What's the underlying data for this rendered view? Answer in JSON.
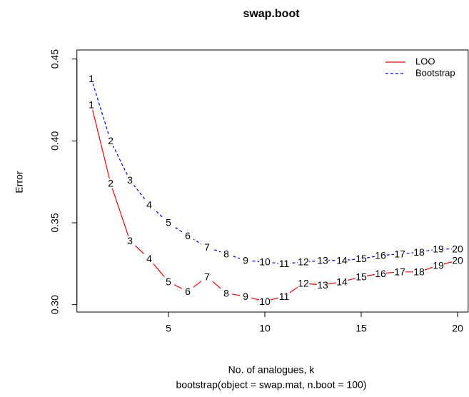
{
  "chart_data": {
    "type": "line",
    "title": "swap.boot",
    "subtitle": "bootstrap(object = swap.mat, n.boot = 100)",
    "x_label": "No. of analogues, k",
    "y_label": "Error",
    "x": [
      1,
      2,
      3,
      4,
      5,
      6,
      7,
      8,
      9,
      10,
      11,
      12,
      13,
      14,
      15,
      16,
      17,
      18,
      19,
      20
    ],
    "series": [
      {
        "name": "LOO",
        "color": "#ff0000",
        "dash": "solid",
        "values": [
          0.422,
          0.374,
          0.339,
          0.328,
          0.314,
          0.308,
          0.317,
          0.307,
          0.305,
          0.302,
          0.305,
          0.313,
          0.312,
          0.314,
          0.317,
          0.319,
          0.32,
          0.32,
          0.324,
          0.327
        ]
      },
      {
        "name": "Bootstrap",
        "color": "#0000ff",
        "dash": "dashed",
        "values": [
          0.438,
          0.4,
          0.376,
          0.361,
          0.35,
          0.342,
          0.335,
          0.331,
          0.327,
          0.326,
          0.325,
          0.326,
          0.327,
          0.327,
          0.328,
          0.33,
          0.331,
          0.332,
          0.334,
          0.334
        ]
      }
    ],
    "xlim": [
      0.25,
      20.55
    ],
    "ylim": [
      0.2955,
      0.4555
    ],
    "xticks": [
      5,
      10,
      15,
      20
    ],
    "yticks": [
      {
        "value": 0.3,
        "label": "0.30"
      },
      {
        "value": 0.35,
        "label": "0.35"
      },
      {
        "value": 0.4,
        "label": "0.40"
      },
      {
        "value": 0.45,
        "label": "0.45"
      }
    ],
    "legend": "top-right"
  }
}
